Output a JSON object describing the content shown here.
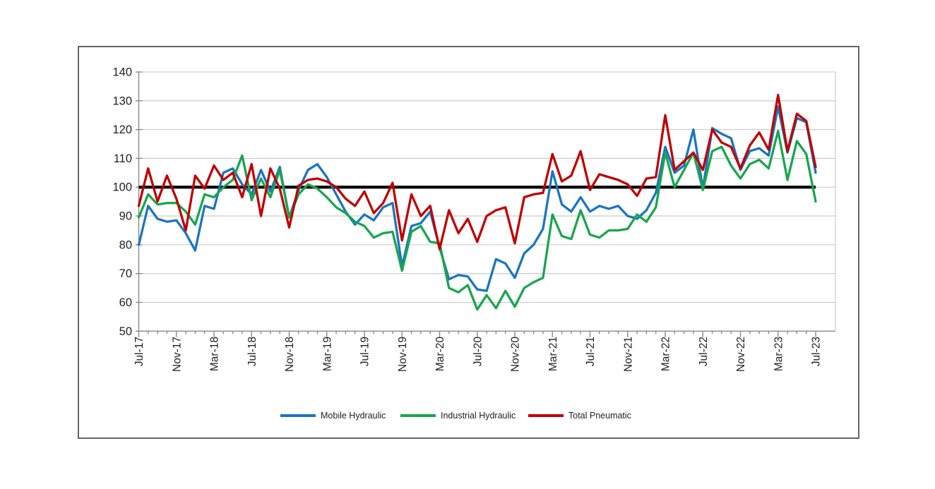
{
  "figure": {
    "background": "#ffffff",
    "border_color": "#666666",
    "grid_color": "#c6c6c6",
    "axis_color": "#8a8a8a",
    "text_color": "#1f1f1f",
    "baseline_color": "#000000"
  },
  "chart_data": {
    "type": "line",
    "title": "",
    "xlabel": "",
    "ylabel": "",
    "ylim": [
      50,
      140
    ],
    "ytick_step": 10,
    "x_tick_every": 4,
    "baseline": 100,
    "grid": "horizontal",
    "legend_position": "bottom",
    "x": [
      "Jul-17",
      "Aug-17",
      "Sep-17",
      "Oct-17",
      "Nov-17",
      "Dec-17",
      "Jan-18",
      "Feb-18",
      "Mar-18",
      "Apr-18",
      "May-18",
      "Jun-18",
      "Jul-18",
      "Aug-18",
      "Sep-18",
      "Oct-18",
      "Nov-18",
      "Dec-18",
      "Jan-19",
      "Feb-19",
      "Mar-19",
      "Apr-19",
      "May-19",
      "Jun-19",
      "Jul-19",
      "Aug-19",
      "Sep-19",
      "Oct-19",
      "Nov-19",
      "Dec-19",
      "Jan-20",
      "Feb-20",
      "Mar-20",
      "Apr-20",
      "May-20",
      "Jun-20",
      "Jul-20",
      "Aug-20",
      "Sep-20",
      "Oct-20",
      "Nov-20",
      "Dec-20",
      "Jan-21",
      "Feb-21",
      "Mar-21",
      "Apr-21",
      "May-21",
      "Jun-21",
      "Jul-21",
      "Aug-21",
      "Sep-21",
      "Oct-21",
      "Nov-21",
      "Dec-21",
      "Jan-22",
      "Feb-22",
      "Mar-22",
      "Apr-22",
      "May-22",
      "Jun-22",
      "Jul-22",
      "Aug-22",
      "Sep-22",
      "Oct-22",
      "Nov-22",
      "Dec-22",
      "Jan-23",
      "Feb-23",
      "Mar-23",
      "Apr-23",
      "May-23",
      "Jun-23",
      "Jul-23"
    ],
    "x_tick_labels": [
      "Jul-17",
      "Nov-17",
      "Mar-18",
      "Jul-18",
      "Nov-18",
      "Mar-19",
      "Jul-19",
      "Nov-19",
      "Mar-20",
      "Jul-20",
      "Nov-20",
      "Mar-21",
      "Jul-21",
      "Nov-21",
      "Mar-22",
      "Jul-22",
      "Nov-22",
      "Mar-23",
      "Jul-23"
    ],
    "series": [
      {
        "name": "Mobile Hydraulic",
        "color": "#1b75c0",
        "values": [
          80,
          93.5,
          89,
          88,
          88.5,
          84,
          78,
          93.5,
          92.5,
          105,
          106.5,
          101,
          97.5,
          106,
          98.5,
          107,
          89.5,
          99,
          106,
          108,
          103.5,
          97.5,
          91.5,
          87,
          90.5,
          88.5,
          93,
          94.5,
          72.5,
          86.5,
          87.5,
          91.5,
          79,
          68,
          69.5,
          69,
          64.5,
          64,
          75,
          73.5,
          68.5,
          77,
          80,
          85.5,
          105.5,
          94,
          91.5,
          96.5,
          91.5,
          93.5,
          92.5,
          93.5,
          90,
          89,
          92,
          98,
          114,
          105,
          107.5,
          120,
          99.5,
          120.5,
          118.5,
          117,
          106,
          112.5,
          113.5,
          111,
          128,
          112,
          124,
          122.5,
          105
        ]
      },
      {
        "name": "Industrial Hydraulic",
        "color": "#18a64e",
        "values": [
          89.5,
          97.5,
          94,
          94.5,
          94.5,
          91.5,
          87,
          97.5,
          96.5,
          100,
          102.5,
          111,
          95.5,
          103,
          96.5,
          106,
          89.5,
          97.5,
          101,
          99.5,
          96.5,
          93,
          91,
          88,
          86.5,
          82.5,
          84,
          84.5,
          71,
          84.5,
          86.5,
          81,
          80.5,
          65,
          63.5,
          66,
          57.5,
          62.5,
          58,
          64,
          58.5,
          65,
          67,
          68.5,
          90.5,
          83,
          82,
          92,
          83.5,
          82.5,
          85,
          85,
          85.5,
          90.5,
          88,
          93,
          112,
          100,
          106,
          112,
          99,
          112.5,
          114,
          107.5,
          103,
          108,
          109.5,
          106.5,
          119.5,
          102.5,
          116,
          111.5,
          95
        ]
      },
      {
        "name": "Total Pneumatic",
        "color": "#c00000",
        "values": [
          93.5,
          106.5,
          95,
          104,
          96,
          85,
          104,
          99.5,
          107.5,
          102.5,
          105,
          96.5,
          108,
          90,
          106.5,
          99.5,
          86,
          100.5,
          102.5,
          103,
          102,
          100,
          96,
          93.5,
          98.5,
          91,
          94.5,
          101.5,
          81.5,
          97.5,
          90,
          93.5,
          78.5,
          92,
          84,
          89,
          81,
          90,
          92,
          93,
          80.5,
          96.5,
          97.5,
          98,
          111.5,
          102,
          104,
          112.5,
          99,
          104.5,
          103.5,
          102.5,
          101,
          97,
          103,
          103.5,
          125,
          106,
          109,
          112,
          106,
          120,
          115.5,
          114,
          106.5,
          114.5,
          119,
          113,
          132,
          112.5,
          125.5,
          123,
          107
        ]
      }
    ]
  }
}
